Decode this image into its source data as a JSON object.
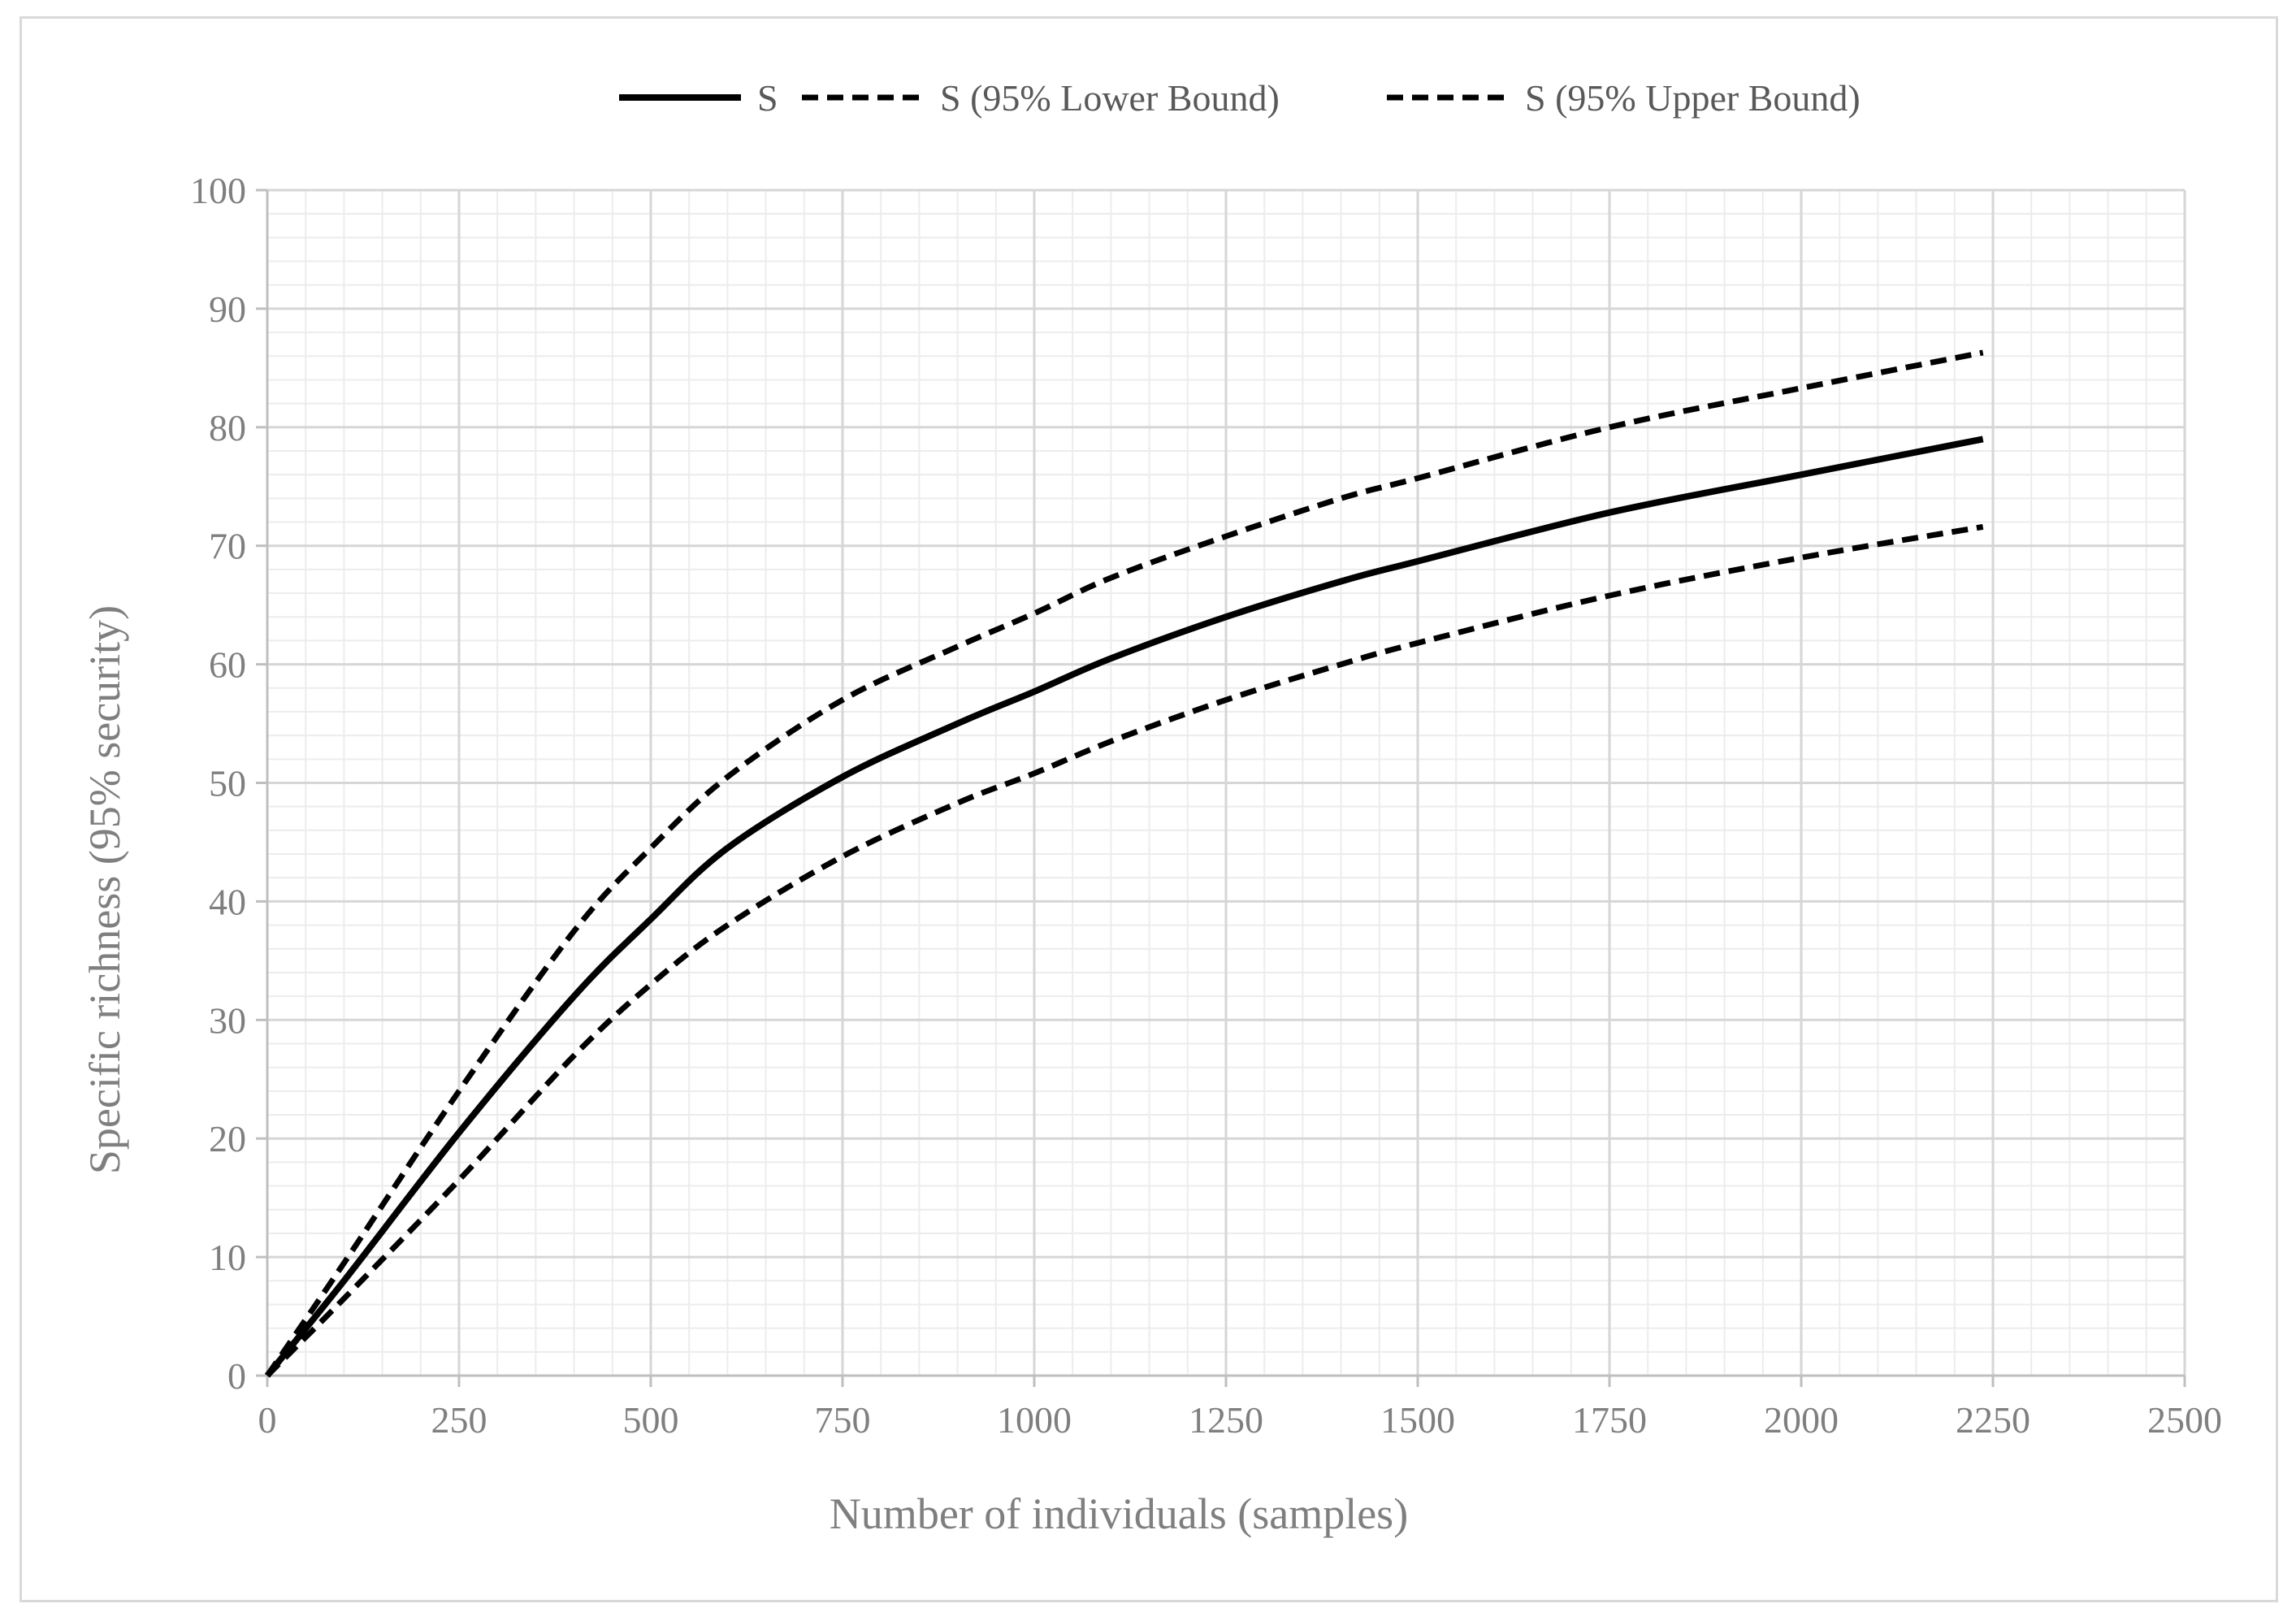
{
  "chart_data": {
    "type": "line",
    "title": "",
    "xlabel": "Number of individuals (samples)",
    "ylabel": "Specific richness (95% security)",
    "xlim": [
      0,
      2500
    ],
    "ylim": [
      0,
      100
    ],
    "x_ticks": [
      "0",
      "250",
      "500",
      "750",
      "1000",
      "1250",
      "1500",
      "1750",
      "2000",
      "2250",
      "2500"
    ],
    "y_ticks": [
      "0",
      "10",
      "20",
      "30",
      "40",
      "50",
      "60",
      "70",
      "80",
      "90",
      "100"
    ],
    "grid": true,
    "legend_position": "top",
    "series": [
      {
        "name": "S",
        "style": "solid",
        "color": "#000000",
        "x": [
          0,
          100,
          250,
          400,
          500,
          600,
          750,
          900,
          1000,
          1100,
          1250,
          1400,
          1500,
          1750,
          2000,
          2237
        ],
        "y": [
          0,
          8,
          20.5,
          32,
          38.5,
          44.5,
          50.5,
          55,
          57.7,
          60.5,
          64,
          67,
          68.7,
          72.8,
          76,
          79
        ]
      },
      {
        "name": "S (95% Lower Bound)",
        "style": "dashed",
        "color": "#000000",
        "x": [
          0,
          100,
          250,
          400,
          500,
          600,
          750,
          900,
          1000,
          1100,
          1250,
          1400,
          1500,
          1750,
          2000,
          2237
        ],
        "y": [
          0,
          6.5,
          16.5,
          27,
          33,
          38,
          43.8,
          48.3,
          50.8,
          53.5,
          57,
          60,
          61.8,
          65.8,
          69,
          71.6
        ]
      },
      {
        "name": "S (95% Upper Bound)",
        "style": "dashed",
        "color": "#000000",
        "x": [
          0,
          100,
          250,
          400,
          500,
          600,
          750,
          900,
          1000,
          1100,
          1250,
          1400,
          1500,
          1750,
          2000,
          2237
        ],
        "y": [
          0,
          9.5,
          24,
          37.5,
          44.5,
          50.5,
          57,
          61.5,
          64.3,
          67.3,
          70.8,
          74,
          75.7,
          80,
          83.3,
          86.3
        ]
      }
    ]
  }
}
